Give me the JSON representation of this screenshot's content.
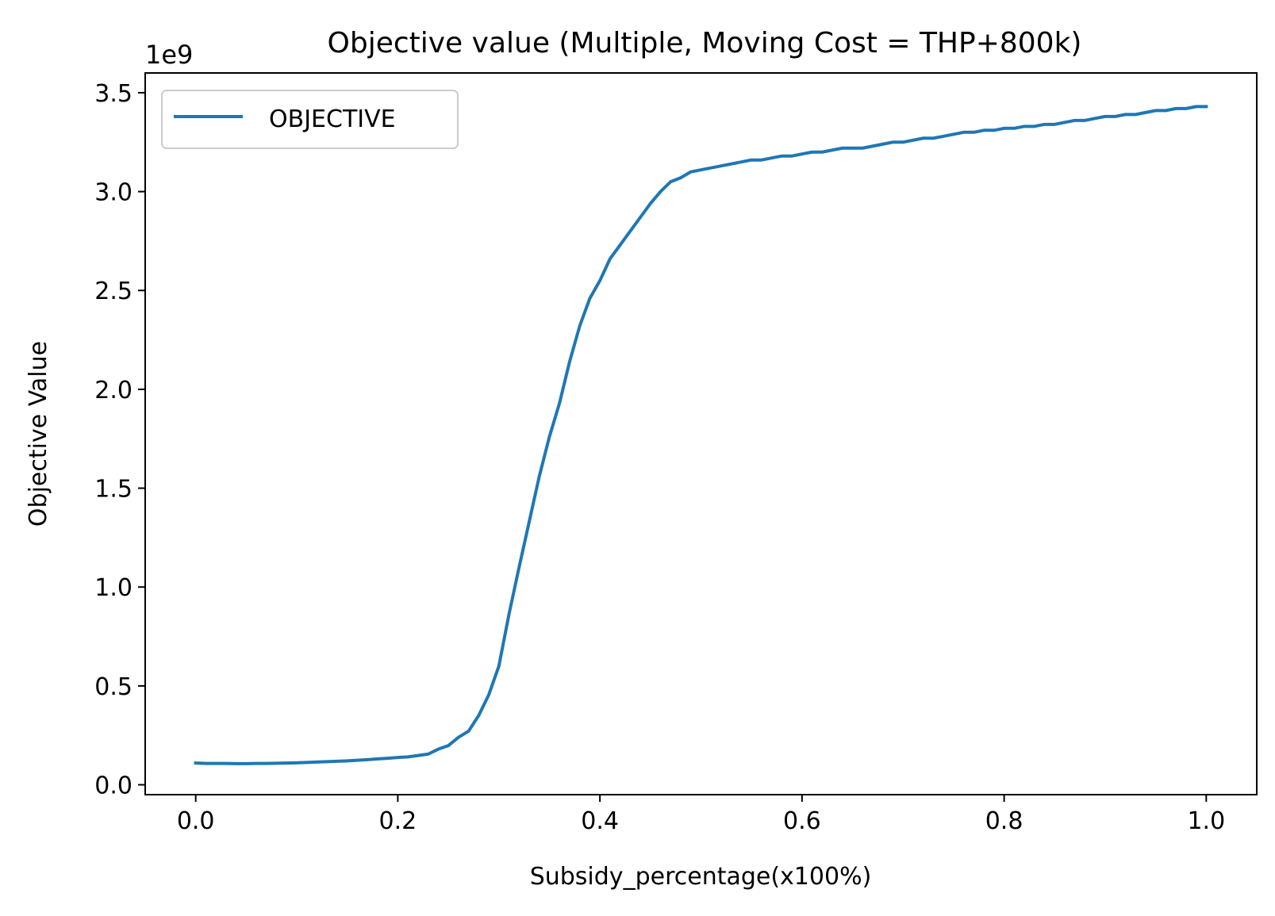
{
  "chart_data": {
    "type": "line",
    "title": "Objective value (Multiple, Moving Cost = THP+800k)",
    "xlabel": "Subsidy_percentage(x100%)",
    "ylabel": "Objective Value",
    "y_scale_label": "1e9",
    "xlim": [
      -0.05,
      1.05
    ],
    "ylim": [
      -0.05,
      3.6
    ],
    "x_ticks": [
      {
        "value": 0.0,
        "label": "0.0"
      },
      {
        "value": 0.2,
        "label": "0.2"
      },
      {
        "value": 0.4,
        "label": "0.4"
      },
      {
        "value": 0.6,
        "label": "0.6"
      },
      {
        "value": 0.8,
        "label": "0.8"
      },
      {
        "value": 1.0,
        "label": "1.0"
      }
    ],
    "y_ticks": [
      {
        "value": 0.0,
        "label": "0.0"
      },
      {
        "value": 0.5,
        "label": "0.5"
      },
      {
        "value": 1.0,
        "label": "1.0"
      },
      {
        "value": 1.5,
        "label": "1.5"
      },
      {
        "value": 2.0,
        "label": "2.0"
      },
      {
        "value": 2.5,
        "label": "2.5"
      },
      {
        "value": 3.0,
        "label": "3.0"
      },
      {
        "value": 3.5,
        "label": "3.5"
      }
    ],
    "grid": false,
    "legend_position": "upper-left",
    "series": [
      {
        "name": "OBJECTIVE",
        "color": "#1f77b4",
        "x": [
          0.0,
          0.01,
          0.02,
          0.03,
          0.04,
          0.05,
          0.06,
          0.07,
          0.08,
          0.09,
          0.1,
          0.11,
          0.12,
          0.13,
          0.14,
          0.15,
          0.16,
          0.17,
          0.18,
          0.19,
          0.2,
          0.21,
          0.22,
          0.23,
          0.24,
          0.25,
          0.26,
          0.27,
          0.28,
          0.29,
          0.3,
          0.31,
          0.32,
          0.33,
          0.34,
          0.35,
          0.36,
          0.37,
          0.38,
          0.39,
          0.4,
          0.41,
          0.42,
          0.43,
          0.44,
          0.45,
          0.46,
          0.47,
          0.48,
          0.49,
          0.5,
          0.51,
          0.52,
          0.53,
          0.54,
          0.55,
          0.56,
          0.57,
          0.58,
          0.59,
          0.6,
          0.61,
          0.62,
          0.63,
          0.64,
          0.65,
          0.66,
          0.67,
          0.68,
          0.69,
          0.7,
          0.71,
          0.72,
          0.73,
          0.74,
          0.75,
          0.76,
          0.77,
          0.78,
          0.79,
          0.8,
          0.81,
          0.82,
          0.83,
          0.84,
          0.85,
          0.86,
          0.87,
          0.88,
          0.89,
          0.9,
          0.91,
          0.92,
          0.93,
          0.94,
          0.95,
          0.96,
          0.97,
          0.98,
          0.99,
          1.0
        ],
        "values": [
          0.11,
          0.108,
          0.108,
          0.108,
          0.107,
          0.107,
          0.108,
          0.108,
          0.109,
          0.11,
          0.111,
          0.113,
          0.115,
          0.117,
          0.119,
          0.121,
          0.124,
          0.127,
          0.131,
          0.134,
          0.138,
          0.141,
          0.148,
          0.155,
          0.18,
          0.198,
          0.24,
          0.271,
          0.35,
          0.455,
          0.6,
          0.862,
          1.1,
          1.33,
          1.56,
          1.76,
          1.93,
          2.14,
          2.32,
          2.46,
          2.55,
          2.66,
          2.73,
          2.8,
          2.87,
          2.94,
          3.0,
          3.05,
          3.07,
          3.1,
          3.11,
          3.12,
          3.13,
          3.14,
          3.15,
          3.16,
          3.16,
          3.17,
          3.18,
          3.18,
          3.19,
          3.2,
          3.2,
          3.21,
          3.22,
          3.22,
          3.22,
          3.23,
          3.24,
          3.25,
          3.25,
          3.26,
          3.27,
          3.27,
          3.28,
          3.29,
          3.3,
          3.3,
          3.31,
          3.31,
          3.32,
          3.32,
          3.33,
          3.33,
          3.34,
          3.34,
          3.35,
          3.36,
          3.36,
          3.37,
          3.38,
          3.38,
          3.39,
          3.39,
          3.4,
          3.41,
          3.41,
          3.42,
          3.42,
          3.43,
          3.43
        ]
      }
    ]
  }
}
